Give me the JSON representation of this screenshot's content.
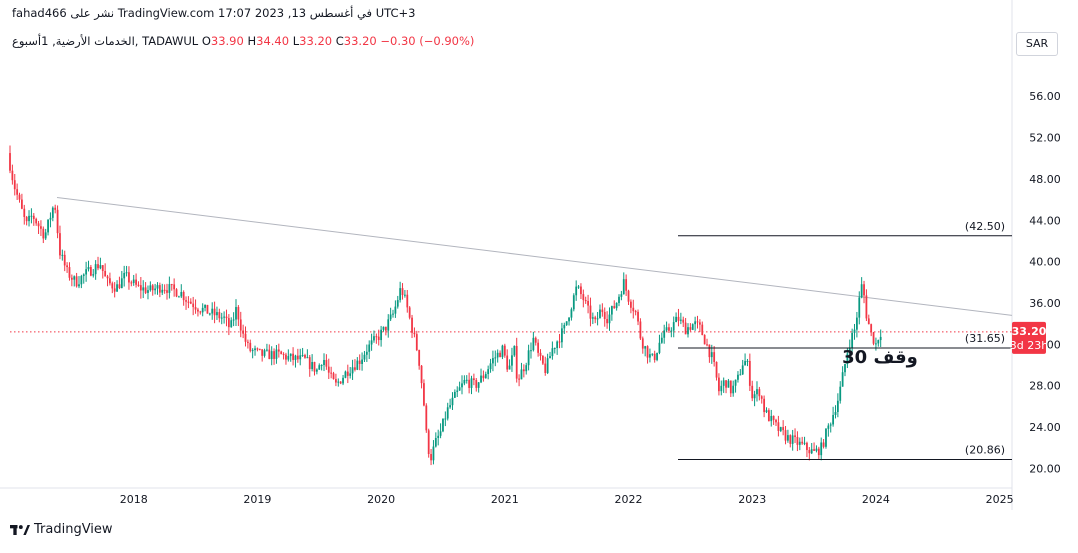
{
  "header": {
    "published_text": "fahad466 نشر على TradingView.com في أغسطس 13, 2023 17:07 UTC+3"
  },
  "legend": {
    "symbol": "الخدمات الأرضية, 1أسبوع, TADAWUL",
    "o_label": "O",
    "o_value": "33.90",
    "h_label": "H",
    "h_value": "34.40",
    "l_label": "L",
    "l_value": "33.20",
    "c_label": "C",
    "c_value": "33.20",
    "change": "−0.30 (−0.90%)"
  },
  "currency": "SAR",
  "price_badge": {
    "price": "33.20",
    "countdown": "3d 23h"
  },
  "annotation": "وقف 30",
  "footer": {
    "brand": "TradingView"
  },
  "colors": {
    "up": "#089981",
    "down": "#f23645",
    "trend": "#b2b5be",
    "level": "#131722",
    "last_price": "#f23645"
  },
  "chart_data": {
    "type": "candlestick",
    "ylim": [
      18.3,
      59.5
    ],
    "y_ticks": [
      20,
      24,
      28,
      32,
      36,
      40,
      44,
      48,
      52,
      56
    ],
    "y_tick_labels": [
      "20.00",
      "24.00",
      "28.00",
      "32.00",
      "36.00",
      "40.00",
      "44.00",
      "48.00",
      "52.00",
      "56.00"
    ],
    "x_ticks": [
      "2018",
      "2019",
      "2020",
      "2021",
      "2022",
      "2023",
      "2024",
      "2025"
    ],
    "xlim": [
      2017.0,
      2025.1
    ],
    "last_price": 33.2,
    "levels": [
      {
        "value": 42.5,
        "label": "(42.50)",
        "x_start": 2022.4
      },
      {
        "value": 31.65,
        "label": "(31.65)",
        "x_start": 2022.4
      },
      {
        "value": 20.86,
        "label": "(20.86)",
        "x_start": 2022.4
      }
    ],
    "trendline": {
      "x1": 2017.38,
      "y1": 46.2,
      "x2": 2025.1,
      "y2": 34.8
    },
    "price_path": [
      [
        2017.0,
        50.5
      ],
      [
        2017.05,
        47.5
      ],
      [
        2017.1,
        45.5
      ],
      [
        2017.15,
        43.5
      ],
      [
        2017.2,
        44.5
      ],
      [
        2017.3,
        42.5
      ],
      [
        2017.38,
        45.8
      ],
      [
        2017.42,
        41.0
      ],
      [
        2017.48,
        39.0
      ],
      [
        2017.55,
        38.0
      ],
      [
        2017.65,
        39.0
      ],
      [
        2017.75,
        39.8
      ],
      [
        2017.8,
        38.0
      ],
      [
        2017.88,
        37.5
      ],
      [
        2017.95,
        38.6
      ],
      [
        2018.05,
        37.5
      ],
      [
        2018.15,
        37.2
      ],
      [
        2018.25,
        37.6
      ],
      [
        2018.4,
        37.0
      ],
      [
        2018.45,
        36.3
      ],
      [
        2018.55,
        35.5
      ],
      [
        2018.65,
        35.0
      ],
      [
        2018.75,
        34.5
      ],
      [
        2018.8,
        33.5
      ],
      [
        2018.85,
        35.5
      ],
      [
        2018.9,
        33.0
      ],
      [
        2018.95,
        31.5
      ],
      [
        2019.05,
        31.0
      ],
      [
        2019.2,
        31.0
      ],
      [
        2019.3,
        30.6
      ],
      [
        2019.4,
        30.5
      ],
      [
        2019.5,
        29.5
      ],
      [
        2019.55,
        30.8
      ],
      [
        2019.6,
        29.0
      ],
      [
        2019.65,
        28.0
      ],
      [
        2019.75,
        29.5
      ],
      [
        2019.85,
        30.5
      ],
      [
        2019.9,
        31.5
      ],
      [
        2019.98,
        32.5
      ],
      [
        2020.05,
        33.5
      ],
      [
        2020.12,
        35.0
      ],
      [
        2020.18,
        37.5
      ],
      [
        2020.22,
        36.0
      ],
      [
        2020.28,
        33.0
      ],
      [
        2020.32,
        31.0
      ],
      [
        2020.36,
        27.0
      ],
      [
        2020.39,
        22.5
      ],
      [
        2020.42,
        21.0
      ],
      [
        2020.46,
        22.5
      ],
      [
        2020.5,
        23.5
      ],
      [
        2020.55,
        25.5
      ],
      [
        2020.62,
        27.0
      ],
      [
        2020.7,
        28.5
      ],
      [
        2020.78,
        28.0
      ],
      [
        2020.85,
        29.0
      ],
      [
        2020.92,
        30.5
      ],
      [
        2021.0,
        31.5
      ],
      [
        2021.05,
        29.5
      ],
      [
        2021.1,
        31.5
      ],
      [
        2021.12,
        28.5
      ],
      [
        2021.18,
        30.0
      ],
      [
        2021.25,
        32.5
      ],
      [
        2021.3,
        30.5
      ],
      [
        2021.35,
        29.5
      ],
      [
        2021.4,
        31.5
      ],
      [
        2021.5,
        33.5
      ],
      [
        2021.55,
        35.5
      ],
      [
        2021.6,
        37.5
      ],
      [
        2021.65,
        36.5
      ],
      [
        2021.7,
        35.0
      ],
      [
        2021.75,
        34.0
      ],
      [
        2021.8,
        35.5
      ],
      [
        2021.85,
        34.5
      ],
      [
        2021.92,
        36.0
      ],
      [
        2021.98,
        38.0
      ],
      [
        2022.02,
        36.5
      ],
      [
        2022.08,
        35.0
      ],
      [
        2022.12,
        32.5
      ],
      [
        2022.18,
        31.0
      ],
      [
        2022.22,
        30.5
      ],
      [
        2022.28,
        32.5
      ],
      [
        2022.35,
        33.5
      ],
      [
        2022.42,
        34.5
      ],
      [
        2022.48,
        33.5
      ],
      [
        2022.55,
        34.0
      ],
      [
        2022.6,
        33.5
      ],
      [
        2022.65,
        32.0
      ],
      [
        2022.7,
        30.5
      ],
      [
        2022.75,
        27.5
      ],
      [
        2022.8,
        28.5
      ],
      [
        2022.85,
        27.5
      ],
      [
        2022.9,
        28.5
      ],
      [
        2022.95,
        30.5
      ],
      [
        2022.98,
        30.0
      ],
      [
        2023.02,
        27.0
      ],
      [
        2023.08,
        27.5
      ],
      [
        2023.12,
        25.5
      ],
      [
        2023.18,
        24.5
      ],
      [
        2023.25,
        23.5
      ],
      [
        2023.3,
        23.0
      ],
      [
        2023.38,
        22.5
      ],
      [
        2023.45,
        22.0
      ],
      [
        2023.52,
        21.5
      ],
      [
        2023.58,
        22.0
      ],
      [
        2023.62,
        23.5
      ],
      [
        2023.68,
        25.5
      ],
      [
        2023.72,
        27.0
      ],
      [
        2023.76,
        29.5
      ],
      [
        2023.8,
        32.0
      ],
      [
        2023.85,
        33.5
      ],
      [
        2023.88,
        36.0
      ],
      [
        2023.91,
        38.0
      ],
      [
        2023.94,
        35.0
      ],
      [
        2023.98,
        33.0
      ],
      [
        2024.02,
        32.0
      ],
      [
        2024.05,
        33.2
      ]
    ]
  }
}
